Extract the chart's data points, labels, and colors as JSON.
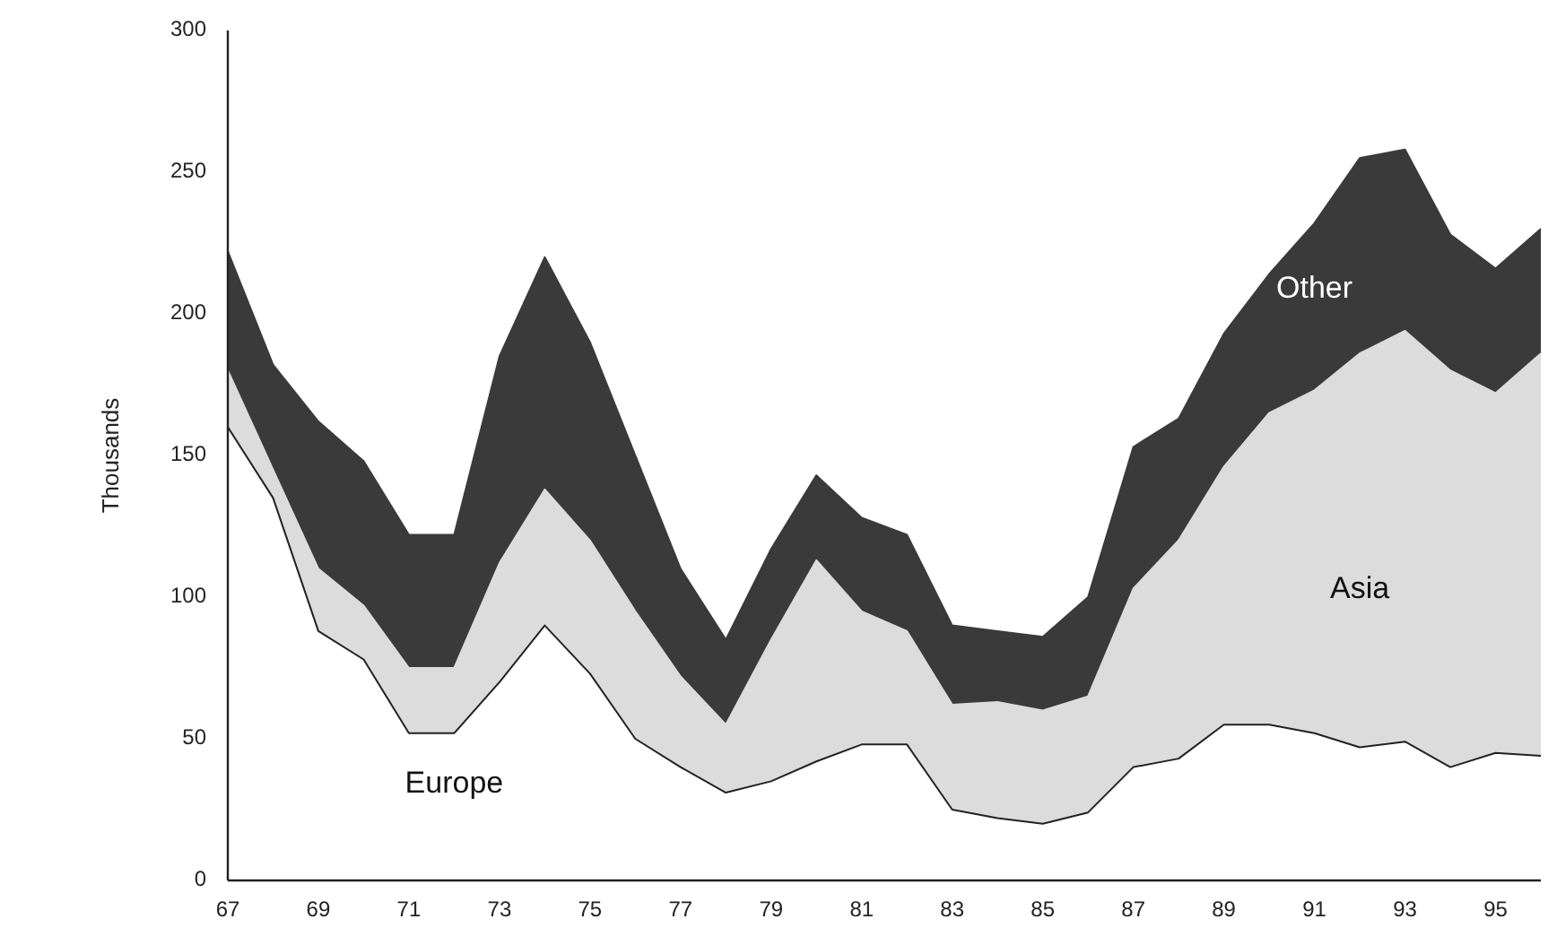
{
  "chart_data": {
    "type": "area",
    "stacked": true,
    "ylabel": "Thousands",
    "x": [
      67,
      68,
      69,
      70,
      71,
      72,
      73,
      74,
      75,
      76,
      77,
      78,
      79,
      80,
      81,
      82,
      83,
      84,
      85,
      86,
      87,
      88,
      89,
      90,
      91,
      92,
      93,
      94,
      95,
      96
    ],
    "xlim": [
      67,
      96
    ],
    "xticks": [
      67,
      69,
      71,
      73,
      75,
      77,
      79,
      81,
      83,
      85,
      87,
      89,
      91,
      93,
      95
    ],
    "ylim": [
      0,
      300
    ],
    "yticks": [
      0,
      50,
      100,
      150,
      200,
      250,
      300
    ],
    "grid": false,
    "legend": false,
    "series": [
      {
        "name": "Europe",
        "color": "#ffffff",
        "values": [
          160,
          135,
          88,
          78,
          52,
          52,
          70,
          90,
          73,
          50,
          40,
          31,
          35,
          42,
          48,
          48,
          25,
          22,
          20,
          24,
          40,
          43,
          55,
          55,
          52,
          47,
          49,
          40,
          45,
          44
        ]
      },
      {
        "name": "Asia",
        "color": "#dcdcdc",
        "values": [
          20,
          10,
          22,
          19,
          23,
          23,
          42,
          48,
          47,
          45,
          32,
          24,
          50,
          71,
          47,
          40,
          37,
          41,
          40,
          41,
          63,
          77,
          91,
          110,
          121,
          139,
          145,
          140,
          127,
          142
        ]
      },
      {
        "name": "Other",
        "color": "#3a3a3a",
        "values": [
          42,
          37,
          52,
          51,
          47,
          47,
          73,
          82,
          70,
          55,
          38,
          30,
          32,
          30,
          33,
          34,
          28,
          25,
          26,
          35,
          50,
          43,
          47,
          49,
          59,
          69,
          64,
          48,
          44,
          44
        ]
      }
    ]
  }
}
